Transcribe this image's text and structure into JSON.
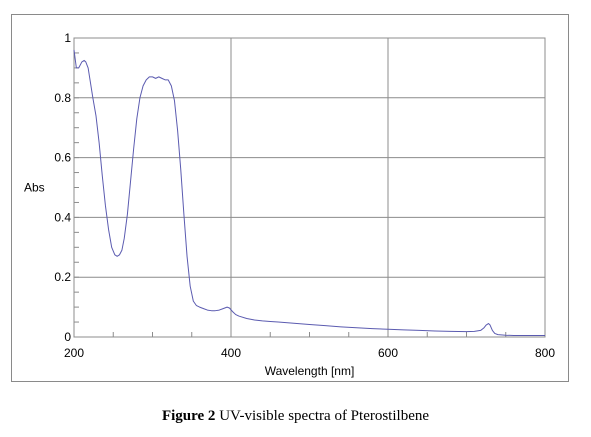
{
  "chart_data": {
    "type": "line",
    "xlabel": "Wavelength [nm]",
    "ylabel": "Abs",
    "xlim": [
      200,
      800
    ],
    "ylim": [
      0,
      1
    ],
    "x_ticks": [
      200,
      400,
      600,
      800
    ],
    "y_ticks": [
      0,
      0.2,
      0.4,
      0.6,
      0.8,
      1
    ],
    "y_tick_labels": [
      "0",
      "0.2",
      "0.4",
      "0.6",
      "0.8",
      "1"
    ],
    "grid": true,
    "legend": "none",
    "series": [
      {
        "color": "#5b5bb0",
        "x": [
          200,
          203,
          206,
          210,
          213,
          215,
          218,
          221,
          224,
          228,
          232,
          236,
          240,
          244,
          248,
          252,
          255,
          258,
          261,
          264,
          268,
          272,
          276,
          280,
          284,
          288,
          292,
          296,
          300,
          304,
          308,
          312,
          316,
          320,
          324,
          328,
          332,
          336,
          340,
          344,
          348,
          352,
          356,
          360,
          365,
          370,
          375,
          380,
          385,
          390,
          395,
          398,
          402,
          406,
          410,
          420,
          430,
          440,
          450,
          460,
          480,
          500,
          520,
          540,
          560,
          580,
          600,
          620,
          640,
          660,
          680,
          700,
          710,
          718,
          722,
          725,
          728,
          730,
          733,
          736,
          740,
          750,
          760,
          770,
          780,
          790,
          800
        ],
        "y": [
          0.96,
          0.9,
          0.9,
          0.92,
          0.925,
          0.92,
          0.9,
          0.85,
          0.8,
          0.74,
          0.65,
          0.54,
          0.44,
          0.36,
          0.3,
          0.275,
          0.27,
          0.275,
          0.29,
          0.33,
          0.41,
          0.52,
          0.63,
          0.73,
          0.8,
          0.84,
          0.86,
          0.87,
          0.87,
          0.865,
          0.87,
          0.865,
          0.86,
          0.86,
          0.84,
          0.79,
          0.69,
          0.56,
          0.41,
          0.27,
          0.17,
          0.12,
          0.105,
          0.1,
          0.095,
          0.09,
          0.088,
          0.088,
          0.09,
          0.095,
          0.1,
          0.097,
          0.085,
          0.075,
          0.07,
          0.062,
          0.057,
          0.054,
          0.052,
          0.05,
          0.046,
          0.042,
          0.038,
          0.034,
          0.031,
          0.028,
          0.026,
          0.024,
          0.022,
          0.02,
          0.019,
          0.018,
          0.019,
          0.022,
          0.03,
          0.04,
          0.045,
          0.04,
          0.022,
          0.012,
          0.008,
          0.006,
          0.005,
          0.005,
          0.005,
          0.005,
          0.005
        ]
      }
    ]
  },
  "caption": {
    "label": "Figure 2",
    "text": " UV-visible spectra of Pterostilbene"
  }
}
